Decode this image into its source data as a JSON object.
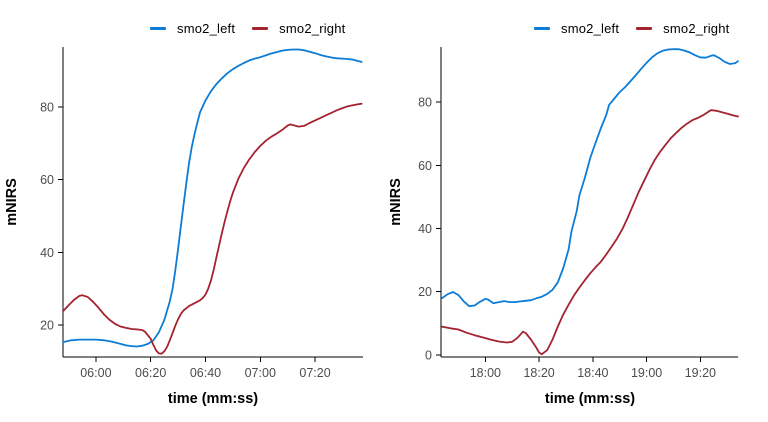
{
  "style": {
    "background": "#ffffff",
    "axis_color": "#000000",
    "tick_label_color": "#4d4d4d",
    "smo2_left_color": "#0c7cd6",
    "smo2_right_color": "#a4232f"
  },
  "chart_data": [
    {
      "type": "line",
      "title": "",
      "xlabel": "time (mm:ss)",
      "ylabel": "mNIRS",
      "legend_position": "top",
      "grid": false,
      "x_ticks": [
        "06:00",
        "06:20",
        "06:40",
        "07:00",
        "07:20"
      ],
      "x_tick_seconds": [
        360,
        380,
        400,
        420,
        440
      ],
      "x_range_seconds": [
        348,
        457.5
      ],
      "y_ticks": [
        20,
        40,
        60,
        80
      ],
      "y_range": [
        11.2,
        96.5
      ],
      "series": [
        {
          "name": "smo2_left",
          "color": "#0c7cd6",
          "points": [
            [
              348,
              15.3
            ],
            [
              351,
              15.8
            ],
            [
              354,
              16
            ],
            [
              357,
              16
            ],
            [
              360,
              16
            ],
            [
              363,
              15.8
            ],
            [
              366,
              15.4
            ],
            [
              369,
              14.8
            ],
            [
              371,
              14.4
            ],
            [
              373,
              14.2
            ],
            [
              375,
              14.1
            ],
            [
              377,
              14.3
            ],
            [
              379,
              14.8
            ],
            [
              381,
              15.8
            ],
            [
              383,
              18
            ],
            [
              385,
              21.5
            ],
            [
              387,
              26.5
            ],
            [
              388,
              30
            ],
            [
              389,
              35
            ],
            [
              390,
              41
            ],
            [
              391,
              47
            ],
            [
              392,
              53
            ],
            [
              393,
              59
            ],
            [
              394,
              64.5
            ],
            [
              395,
              69
            ],
            [
              396,
              72.5
            ],
            [
              397,
              75.5
            ],
            [
              398,
              78.5
            ],
            [
              400,
              81.8
            ],
            [
              402,
              84.3
            ],
            [
              404,
              86.3
            ],
            [
              406,
              87.9
            ],
            [
              408,
              89.3
            ],
            [
              410,
              90.4
            ],
            [
              412,
              91.3
            ],
            [
              414,
              92.1
            ],
            [
              416,
              92.8
            ],
            [
              418,
              93.3
            ],
            [
              420,
              93.7
            ],
            [
              422,
              94.2
            ],
            [
              424,
              94.7
            ],
            [
              426,
              95.1
            ],
            [
              428,
              95.5
            ],
            [
              430,
              95.7
            ],
            [
              432,
              95.8
            ],
            [
              434,
              95.8
            ],
            [
              436,
              95.6
            ],
            [
              438,
              95.2
            ],
            [
              440,
              94.8
            ],
            [
              442,
              94.3
            ],
            [
              444,
              93.9
            ],
            [
              446,
              93.6
            ],
            [
              448,
              93.4
            ],
            [
              450,
              93.3
            ],
            [
              452,
              93.2
            ],
            [
              454,
              93
            ],
            [
              456,
              92.6
            ],
            [
              457,
              92.4
            ]
          ]
        },
        {
          "name": "smo2_right",
          "color": "#a4232f",
          "points": [
            [
              348,
              23.8
            ],
            [
              350,
              25.4
            ],
            [
              352,
              26.9
            ],
            [
              354,
              28
            ],
            [
              355,
              28.2
            ],
            [
              357,
              27.7
            ],
            [
              359,
              26.4
            ],
            [
              361,
              24.7
            ],
            [
              363,
              22.9
            ],
            [
              365,
              21.4
            ],
            [
              367,
              20.3
            ],
            [
              369,
              19.6
            ],
            [
              371,
              19.2
            ],
            [
              373,
              18.9
            ],
            [
              375,
              18.8
            ],
            [
              377,
              18.6
            ],
            [
              378,
              18.1
            ],
            [
              380,
              16.2
            ],
            [
              381,
              14.5
            ],
            [
              382,
              13
            ],
            [
              383,
              12.2
            ],
            [
              384,
              12.1
            ],
            [
              385,
              12.8
            ],
            [
              386,
              14
            ],
            [
              387,
              15.8
            ],
            [
              388,
              17.8
            ],
            [
              389,
              19.8
            ],
            [
              390,
              21.6
            ],
            [
              391,
              23
            ],
            [
              392,
              24
            ],
            [
              394,
              25.2
            ],
            [
              396,
              26
            ],
            [
              398,
              26.8
            ],
            [
              399,
              27.4
            ],
            [
              400,
              28.4
            ],
            [
              401,
              30
            ],
            [
              402,
              32.2
            ],
            [
              403,
              35.2
            ],
            [
              404,
              38.6
            ],
            [
              405,
              42
            ],
            [
              406,
              45.3
            ],
            [
              407,
              48.4
            ],
            [
              408,
              51.3
            ],
            [
              409,
              54
            ],
            [
              410,
              56.4
            ],
            [
              412,
              60.2
            ],
            [
              414,
              63.2
            ],
            [
              416,
              65.6
            ],
            [
              418,
              67.6
            ],
            [
              420,
              69.3
            ],
            [
              422,
              70.7
            ],
            [
              424,
              71.8
            ],
            [
              426,
              72.7
            ],
            [
              428,
              73.7
            ],
            [
              430,
              74.9
            ],
            [
              431,
              75.2
            ],
            [
              432,
              75
            ],
            [
              434,
              74.6
            ],
            [
              436,
              74.8
            ],
            [
              438,
              75.6
            ],
            [
              440,
              76.3
            ],
            [
              442,
              77
            ],
            [
              444,
              77.7
            ],
            [
              446,
              78.4
            ],
            [
              448,
              79.1
            ],
            [
              450,
              79.7
            ],
            [
              452,
              80.2
            ],
            [
              454,
              80.5
            ],
            [
              456,
              80.8
            ],
            [
              457,
              80.9
            ]
          ]
        }
      ]
    },
    {
      "type": "line",
      "title": "",
      "xlabel": "time (mm:ss)",
      "ylabel": "mNIRS",
      "legend_position": "top",
      "grid": false,
      "x_ticks": [
        "18:00",
        "18:20",
        "18:40",
        "19:00",
        "19:20"
      ],
      "x_tick_seconds": [
        1080,
        1100,
        1120,
        1140,
        1160
      ],
      "x_range_seconds": [
        1063.5,
        1174
      ],
      "y_ticks": [
        0,
        20,
        40,
        60,
        80
      ],
      "y_range": [
        -0.7,
        97.5
      ],
      "series": [
        {
          "name": "smo2_left",
          "color": "#0c7cd6",
          "points": [
            [
              1064,
              18
            ],
            [
              1066,
              19.2
            ],
            [
              1068,
              19.9
            ],
            [
              1070,
              18.9
            ],
            [
              1072,
              16.9
            ],
            [
              1074,
              15.4
            ],
            [
              1076,
              15.6
            ],
            [
              1078,
              16.8
            ],
            [
              1080,
              17.7
            ],
            [
              1081,
              17.5
            ],
            [
              1083,
              16.3
            ],
            [
              1085,
              16.7
            ],
            [
              1087,
              17
            ],
            [
              1089,
              16.7
            ],
            [
              1091,
              16.7
            ],
            [
              1093,
              16.9
            ],
            [
              1095,
              17.1
            ],
            [
              1097,
              17.3
            ],
            [
              1099,
              17.9
            ],
            [
              1101,
              18.4
            ],
            [
              1103,
              19.3
            ],
            [
              1105,
              20.6
            ],
            [
              1107,
              23
            ],
            [
              1109,
              27.5
            ],
            [
              1111,
              33.5
            ],
            [
              1112,
              39
            ],
            [
              1114,
              45.5
            ],
            [
              1115,
              50.5
            ],
            [
              1117,
              56
            ],
            [
              1119,
              62.3
            ],
            [
              1121,
              67.1
            ],
            [
              1123,
              71.8
            ],
            [
              1125,
              76
            ],
            [
              1126,
              79.1
            ],
            [
              1128,
              81.2
            ],
            [
              1130,
              83.2
            ],
            [
              1132,
              84.8
            ],
            [
              1134,
              86.7
            ],
            [
              1136,
              88.6
            ],
            [
              1138,
              90.6
            ],
            [
              1140,
              92.5
            ],
            [
              1142,
              94.2
            ],
            [
              1144,
              95.5
            ],
            [
              1146,
              96.3
            ],
            [
              1148,
              96.7
            ],
            [
              1150,
              96.8
            ],
            [
              1152,
              96.8
            ],
            [
              1154,
              96.4
            ],
            [
              1156,
              95.8
            ],
            [
              1158,
              94.9
            ],
            [
              1160,
              94.2
            ],
            [
              1162,
              94.1
            ],
            [
              1164,
              94.7
            ],
            [
              1165,
              94.9
            ],
            [
              1167,
              94
            ],
            [
              1169,
              92.8
            ],
            [
              1171,
              92.1
            ],
            [
              1173,
              92.4
            ],
            [
              1174,
              93
            ]
          ]
        },
        {
          "name": "smo2_right",
          "color": "#a4232f",
          "points": [
            [
              1064,
              8.9
            ],
            [
              1067,
              8.4
            ],
            [
              1070,
              8
            ],
            [
              1073,
              7
            ],
            [
              1076,
              6.2
            ],
            [
              1079,
              5.5
            ],
            [
              1082,
              4.8
            ],
            [
              1085,
              4.2
            ],
            [
              1088,
              3.9
            ],
            [
              1090,
              4.1
            ],
            [
              1092,
              5.4
            ],
            [
              1094,
              7.3
            ],
            [
              1095,
              6.9
            ],
            [
              1097,
              4.8
            ],
            [
              1099,
              2.2
            ],
            [
              1100,
              0.7
            ],
            [
              1101,
              0.2
            ],
            [
              1103,
              1.5
            ],
            [
              1105,
              4.8
            ],
            [
              1107,
              9
            ],
            [
              1109,
              12.8
            ],
            [
              1111,
              15.9
            ],
            [
              1113,
              18.8
            ],
            [
              1115,
              21.3
            ],
            [
              1117,
              23.6
            ],
            [
              1119,
              25.8
            ],
            [
              1121,
              27.7
            ],
            [
              1123,
              29.5
            ],
            [
              1125,
              31.8
            ],
            [
              1127,
              34.3
            ],
            [
              1129,
              36.8
            ],
            [
              1131,
              39.8
            ],
            [
              1133,
              43.5
            ],
            [
              1135,
              47.5
            ],
            [
              1137,
              51.5
            ],
            [
              1139,
              55
            ],
            [
              1141,
              58.5
            ],
            [
              1143,
              61.7
            ],
            [
              1145,
              64.3
            ],
            [
              1147,
              66.5
            ],
            [
              1149,
              68.6
            ],
            [
              1151,
              70.3
            ],
            [
              1153,
              71.9
            ],
            [
              1155,
              73.2
            ],
            [
              1157,
              74.3
            ],
            [
              1159,
              75
            ],
            [
              1161,
              75.9
            ],
            [
              1163,
              77
            ],
            [
              1164,
              77.5
            ],
            [
              1166,
              77.3
            ],
            [
              1168,
              76.8
            ],
            [
              1170,
              76.4
            ],
            [
              1172,
              75.9
            ],
            [
              1174,
              75.5
            ]
          ]
        }
      ]
    }
  ]
}
